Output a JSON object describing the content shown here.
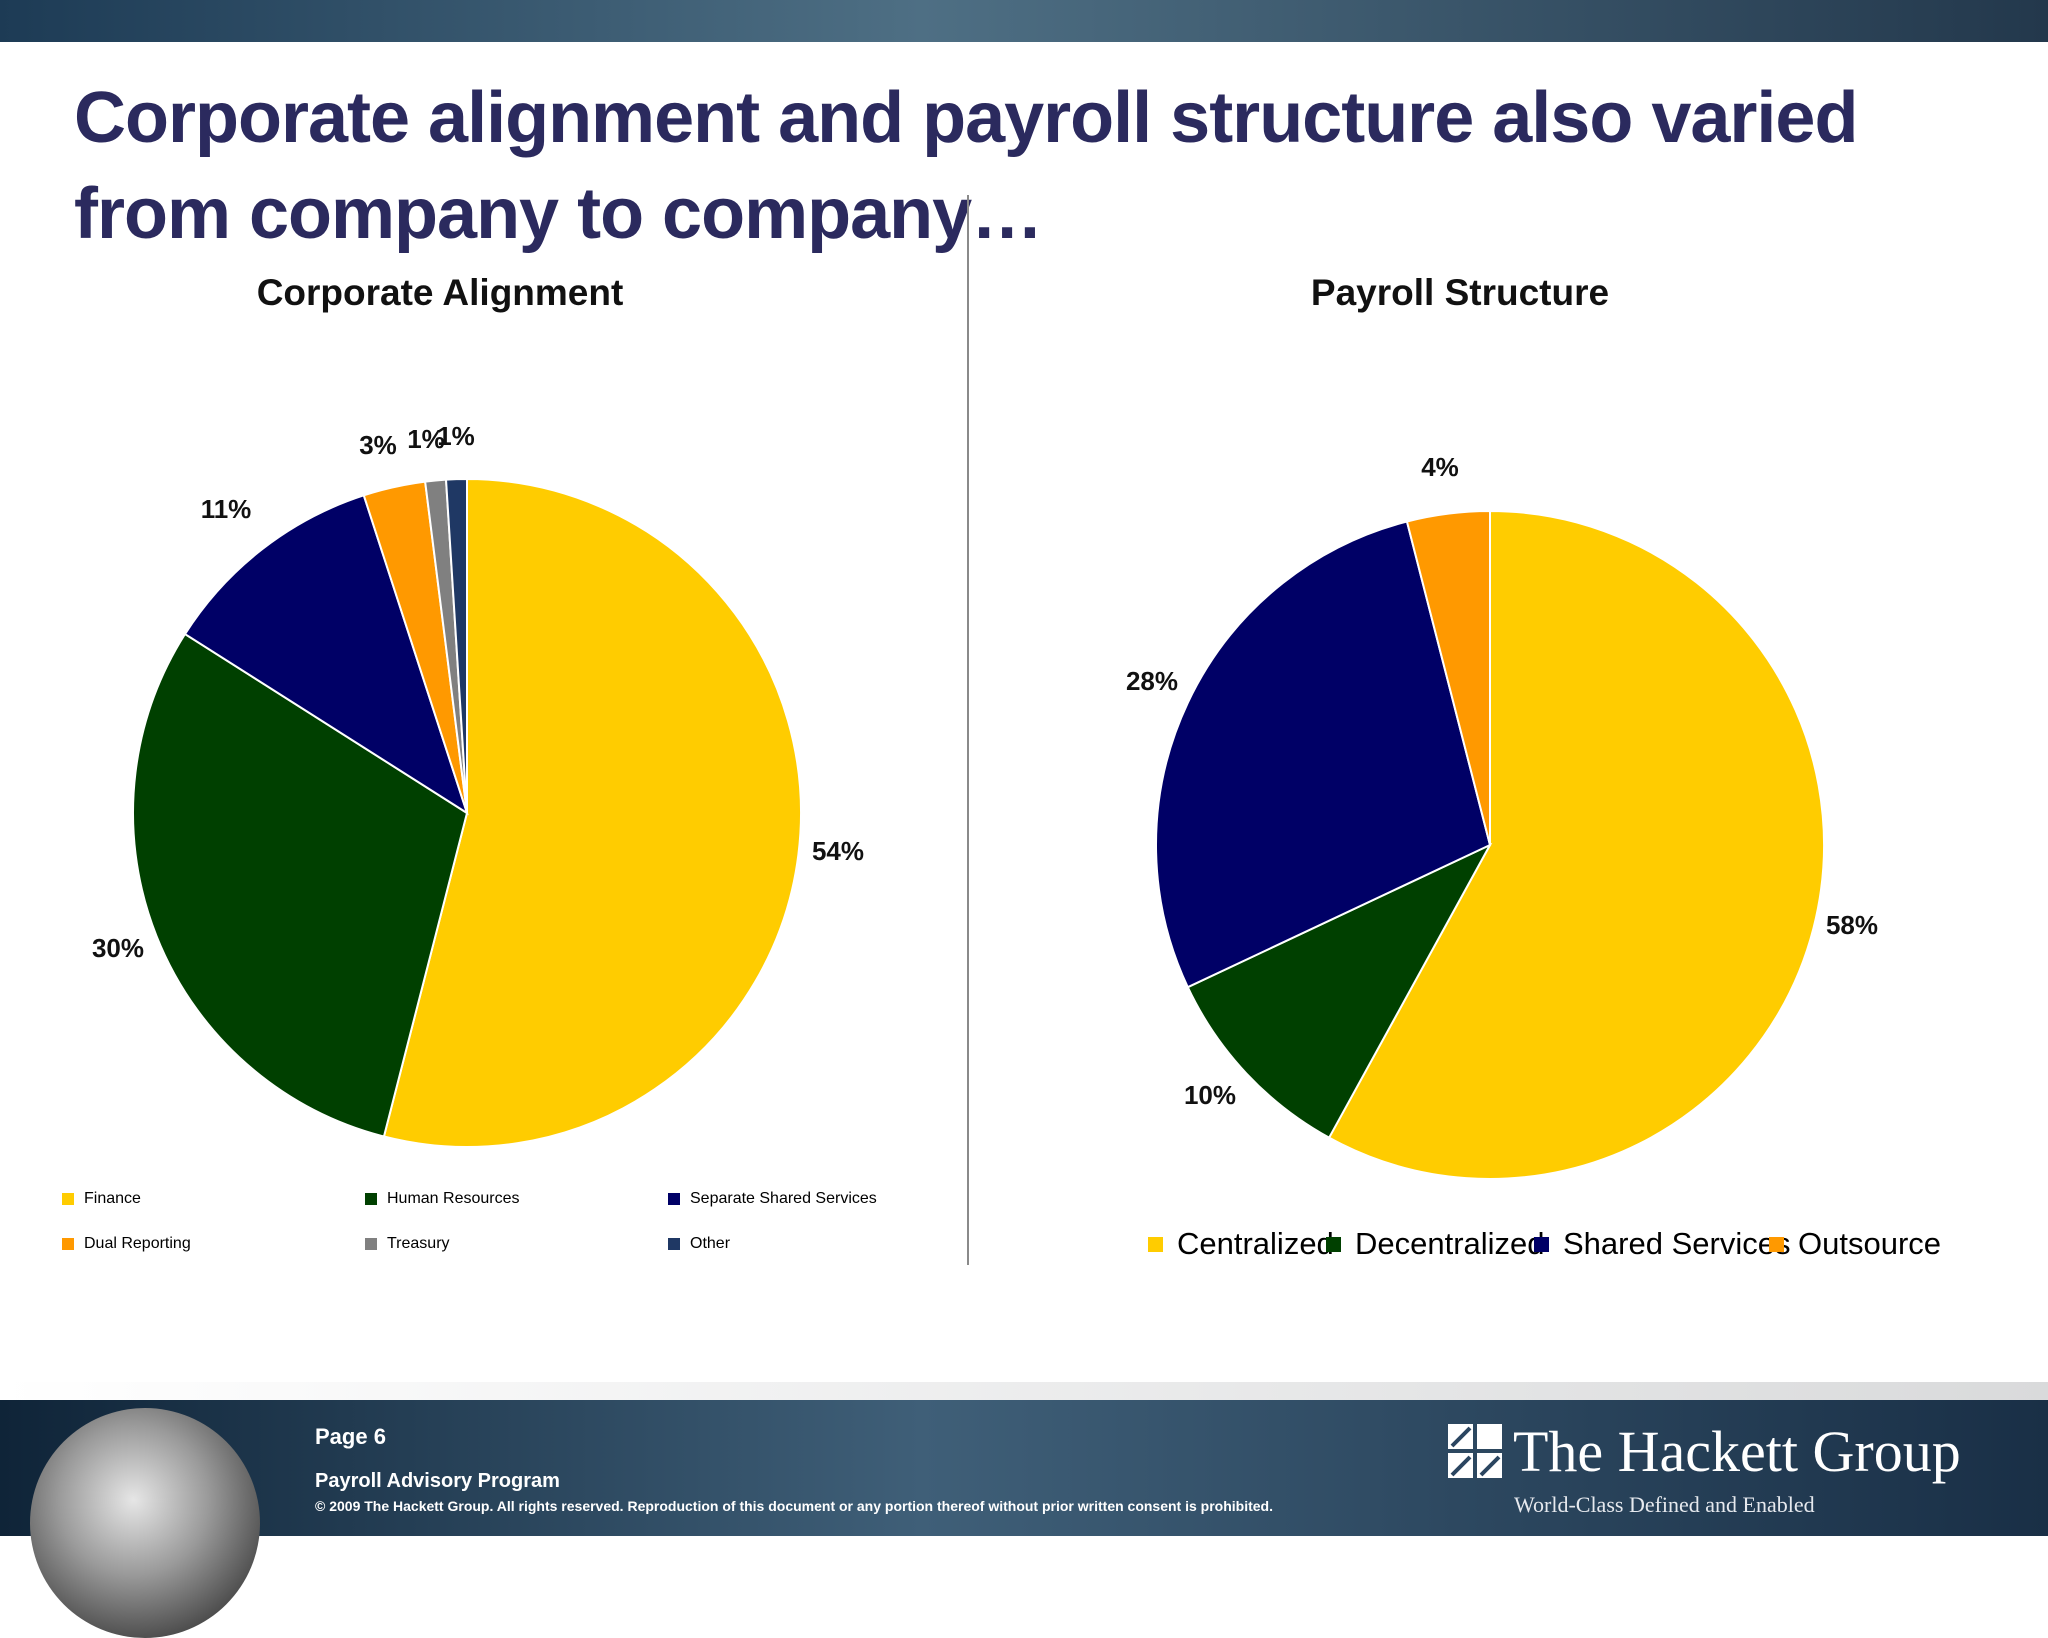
{
  "slide": {
    "title_line1": "Corporate alignment and payroll structure also varied",
    "title_line2": "from company to company…"
  },
  "chart_data": [
    {
      "type": "pie",
      "title": "Corporate Alignment",
      "legend_position": "bottom",
      "slices": [
        {
          "label": "Finance",
          "value": 54,
          "value_label": "54%",
          "color": "#FFCC00"
        },
        {
          "label": "Human Resources",
          "value": 30,
          "value_label": "30%",
          "color": "#004000"
        },
        {
          "label": "Separate Shared Services",
          "value": 11,
          "value_label": "11%",
          "color": "#000066"
        },
        {
          "label": "Dual Reporting",
          "value": 3,
          "value_label": "3%",
          "color": "#FF9900"
        },
        {
          "label": "Treasury",
          "value": 1,
          "value_label": "1%",
          "color": "#808080"
        },
        {
          "label": "Other",
          "value": 1,
          "value_label": "1%",
          "color": "#1F3864"
        }
      ]
    },
    {
      "type": "pie",
      "title": "Payroll Structure",
      "legend_position": "bottom",
      "slices": [
        {
          "label": "Centralized",
          "value": 58,
          "value_label": "58%",
          "color": "#FFCC00"
        },
        {
          "label": "Decentralized",
          "value": 10,
          "value_label": "10%",
          "color": "#004000"
        },
        {
          "label": "Shared Services",
          "value": 28,
          "value_label": "28%",
          "color": "#000066"
        },
        {
          "label": "Outsource",
          "value": 4,
          "value_label": "4%",
          "color": "#FF9900"
        }
      ]
    }
  ],
  "footer": {
    "page": "Page 6",
    "program": "Payroll Advisory Program",
    "copyright": "© 2009 The Hackett Group.  All rights reserved. Reproduction of this document or any portion thereof without prior written consent is prohibited.",
    "company": "The Hackett Group",
    "tagline": "World-Class Defined and Enabled"
  }
}
